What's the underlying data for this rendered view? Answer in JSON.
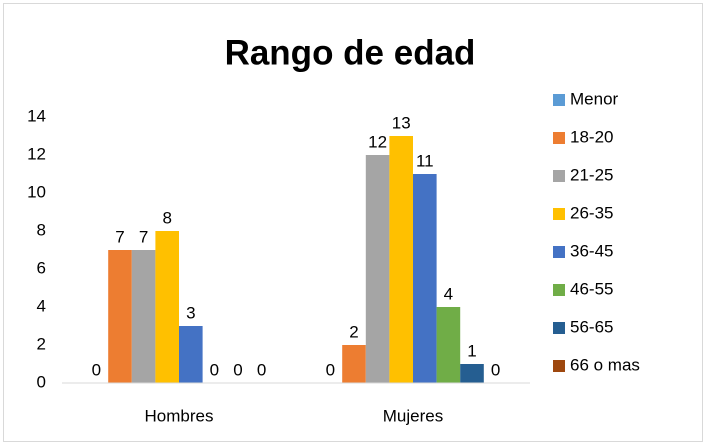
{
  "chart_data": {
    "type": "bar",
    "title": "Rango de edad",
    "categories": [
      "Hombres",
      "Mujeres"
    ],
    "series": [
      {
        "name": "Menor",
        "color": "#5b9bd5",
        "values": [
          0,
          0
        ]
      },
      {
        "name": "18-20",
        "color": "#ed7d31",
        "values": [
          7,
          2
        ]
      },
      {
        "name": "21-25",
        "color": "#a5a5a5",
        "values": [
          7,
          12
        ]
      },
      {
        "name": "26-35",
        "color": "#ffc000",
        "values": [
          8,
          13
        ]
      },
      {
        "name": "36-45",
        "color": "#4472c4",
        "values": [
          3,
          11
        ]
      },
      {
        "name": "46-55",
        "color": "#70ad47",
        "values": [
          0,
          4
        ]
      },
      {
        "name": "56-65",
        "color": "#255e91",
        "values": [
          0,
          1
        ]
      },
      {
        "name": "66 o mas",
        "color": "#9e480e",
        "values": [
          0,
          0
        ]
      }
    ],
    "ylim": [
      0,
      14
    ],
    "yticks": [
      0,
      2,
      4,
      6,
      8,
      10,
      12,
      14
    ],
    "grid": false,
    "legend": "right"
  }
}
